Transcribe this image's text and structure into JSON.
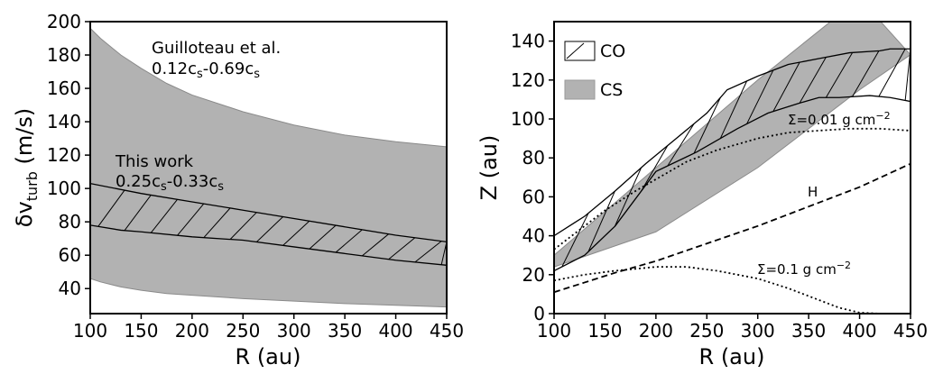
{
  "chart_data": [
    {
      "type": "area",
      "xlabel": "R (au)",
      "ylabel_main": "δv",
      "ylabel_sub": "turb",
      "ylabel_unit": " (m/s)",
      "xlim": [
        100,
        450
      ],
      "ylim": [
        25,
        200
      ],
      "xticks": [
        100,
        150,
        200,
        250,
        300,
        350,
        400,
        450
      ],
      "yticks": [
        40,
        60,
        80,
        100,
        120,
        140,
        160,
        180,
        200
      ],
      "series": [
        {
          "name": "Guilloteau et al.",
          "label_line1": "Guilloteau et al.",
          "label_line2": "0.12c_s-0.69c_s",
          "fill": "gray",
          "upper": {
            "x": [
              100,
              110,
              130,
              150,
              175,
              200,
              250,
              300,
              350,
              400,
              450
            ],
            "y": [
              196,
              190,
              180,
              172,
              163,
              156,
              146,
              138,
              132,
              128,
              125
            ]
          },
          "lower": {
            "x": [
              100,
              110,
              130,
              150,
              175,
              200,
              250,
              300,
              350,
              400,
              450
            ],
            "y": [
              46,
              44,
              41,
              39,
              37,
              36,
              34,
              32.5,
              31,
              30,
              29
            ]
          }
        },
        {
          "name": "This work",
          "label_line1": "This work",
          "label_line2": "0.25c_s-0.33c_s",
          "fill": "hatched",
          "upper": {
            "x": [
              100,
              150,
              200,
              250,
              300,
              350,
              400,
              450
            ],
            "y": [
              103,
              97,
              92,
              87,
              82,
              77,
              72,
              68
            ]
          },
          "lower": {
            "x": [
              100,
              130,
              150,
              200,
              250,
              300,
              350,
              400,
              450
            ],
            "y": [
              78,
              75,
              74,
              71,
              69,
              65,
              61,
              57,
              54
            ]
          }
        }
      ]
    },
    {
      "type": "area",
      "xlabel": "R (au)",
      "ylabel": "Z (au)",
      "xlim": [
        100,
        450
      ],
      "ylim": [
        0,
        150
      ],
      "xticks": [
        100,
        150,
        200,
        250,
        300,
        350,
        400,
        450
      ],
      "yticks": [
        0,
        20,
        40,
        60,
        80,
        100,
        120,
        140
      ],
      "legend": {
        "location": "top-left",
        "entries": [
          {
            "label": "CO",
            "style": "hatched"
          },
          {
            "label": "CS",
            "style": "gray"
          }
        ]
      },
      "series": [
        {
          "name": "CS",
          "fill": "gray",
          "upper": {
            "x": [
              100,
              200,
              300,
              400
            ],
            "y": [
              30,
              75,
              120,
              162
            ]
          },
          "lower": {
            "x": [
              100,
              200,
              300,
              400,
              450
            ],
            "y": [
              24,
              42,
              75,
              115,
              133
            ]
          }
        },
        {
          "name": "CO",
          "fill": "hatched",
          "upper": {
            "x": [
              100,
              130,
              160,
              190,
              220,
              250,
              270,
              300,
              330,
              360,
              390,
              420,
              430,
              450
            ],
            "y": [
              40,
              50,
              63,
              77,
              90,
              103,
              115,
              122,
              128,
              131,
              134,
              135,
              136,
              136
            ]
          },
          "lower": {
            "x": [
              100,
              130,
              160,
              200,
              240,
              280,
              310,
              340,
              360,
              380,
              410,
              430,
              450
            ],
            "y": [
              22,
              30,
              45,
              73,
              83,
              95,
              103,
              108,
              111,
              111,
              112,
              111,
              109
            ]
          }
        },
        {
          "name": "Σ=0.01 g cm^-2",
          "label": "Σ=0.01 g cm",
          "label_exp": "−2",
          "style": "dotted",
          "x": [
            100,
            120,
            150,
            180,
            200,
            230,
            260,
            300,
            330,
            360,
            390,
            420,
            450
          ],
          "y": [
            33,
            41,
            53,
            63,
            69,
            78,
            84,
            90,
            93,
            94,
            95,
            95,
            94
          ]
        },
        {
          "name": "Σ=0.1 g cm^-2",
          "label": "Σ=0.1 g cm",
          "label_exp": "−2",
          "style": "dotted",
          "x": [
            100,
            130,
            160,
            200,
            230,
            260,
            300,
            330,
            360,
            380,
            400,
            420,
            450
          ],
          "y": [
            17,
            20,
            22,
            24,
            24,
            22,
            18,
            13,
            7,
            3,
            0.5,
            0,
            0
          ]
        },
        {
          "name": "H",
          "label": "H",
          "style": "dashed",
          "x": [
            100,
            130,
            160,
            200,
            250,
            300,
            350,
            400,
            450
          ],
          "y": [
            11,
            16,
            21,
            27,
            36,
            45,
            55,
            65,
            77
          ]
        }
      ]
    }
  ]
}
